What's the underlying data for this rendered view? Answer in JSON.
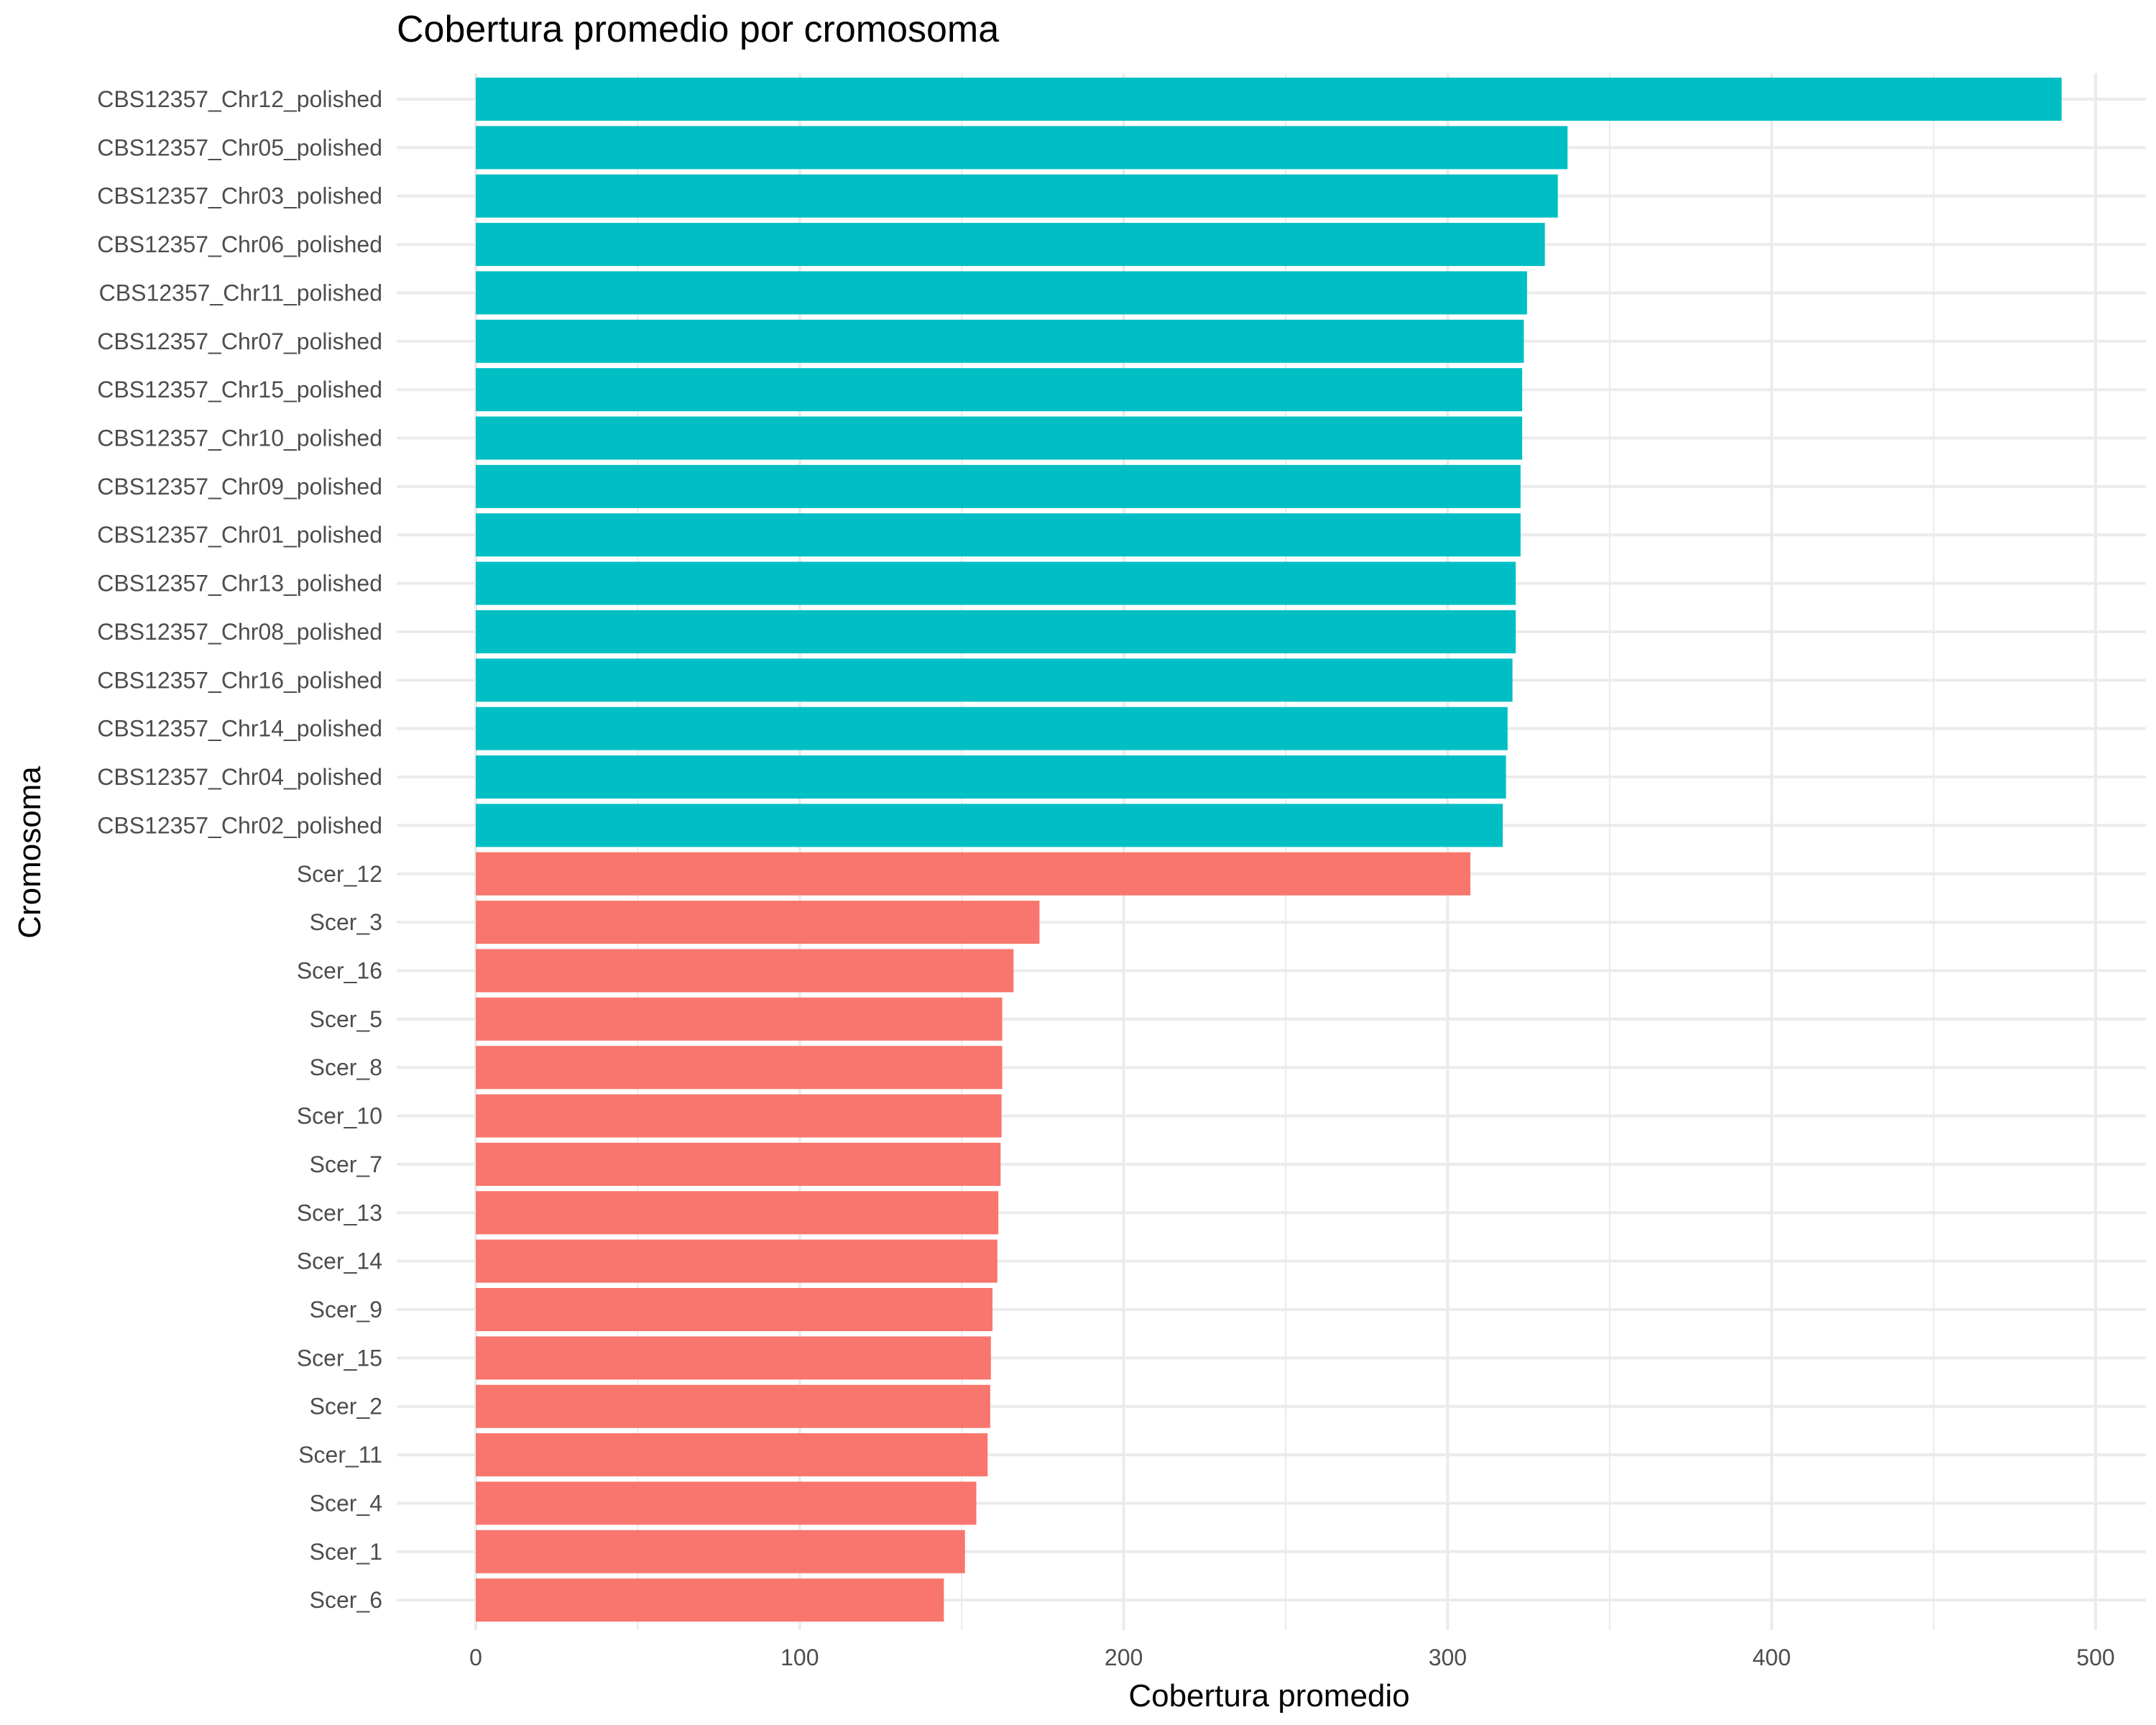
{
  "chart_data": {
    "type": "bar",
    "orientation": "horizontal",
    "title": "Cobertura promedio por cromosoma",
    "xlabel": "Cobertura promedio",
    "ylabel": "Cromosoma",
    "xlim": [
      0,
      520
    ],
    "x_ticks": [
      0,
      100,
      200,
      300,
      400,
      500
    ],
    "grid": true,
    "legend": "none",
    "categories": [
      "CBS12357_Chr12_polished",
      "CBS12357_Chr05_polished",
      "CBS12357_Chr03_polished",
      "CBS12357_Chr06_polished",
      "CBS12357_Chr11_polished",
      "CBS12357_Chr07_polished",
      "CBS12357_Chr15_polished",
      "CBS12357_Chr10_polished",
      "CBS12357_Chr09_polished",
      "CBS12357_Chr01_polished",
      "CBS12357_Chr13_polished",
      "CBS12357_Chr08_polished",
      "CBS12357_Chr16_polished",
      "CBS12357_Chr14_polished",
      "CBS12357_Chr04_polished",
      "CBS12357_Chr02_polished",
      "Scer_12",
      "Scer_3",
      "Scer_16",
      "Scer_5",
      "Scer_8",
      "Scer_10",
      "Scer_7",
      "Scer_13",
      "Scer_14",
      "Scer_9",
      "Scer_15",
      "Scer_2",
      "Scer_11",
      "Scer_4",
      "Scer_1",
      "Scer_6"
    ],
    "values": [
      489.5,
      337,
      334,
      330,
      324.5,
      323.5,
      323,
      323,
      322.5,
      322.5,
      321,
      321,
      320,
      318.5,
      318,
      317,
      307,
      174,
      166,
      162.5,
      162.5,
      162.3,
      162,
      161.3,
      161,
      159.5,
      159,
      158.8,
      158,
      154.5,
      151,
      144.5
    ],
    "groups": [
      "CBS12357",
      "CBS12357",
      "CBS12357",
      "CBS12357",
      "CBS12357",
      "CBS12357",
      "CBS12357",
      "CBS12357",
      "CBS12357",
      "CBS12357",
      "CBS12357",
      "CBS12357",
      "CBS12357",
      "CBS12357",
      "CBS12357",
      "CBS12357",
      "Scer",
      "Scer",
      "Scer",
      "Scer",
      "Scer",
      "Scer",
      "Scer",
      "Scer",
      "Scer",
      "Scer",
      "Scer",
      "Scer",
      "Scer",
      "Scer",
      "Scer",
      "Scer"
    ],
    "colors": {
      "CBS12357": "#00BFC4",
      "Scer": "#F8766D"
    }
  }
}
